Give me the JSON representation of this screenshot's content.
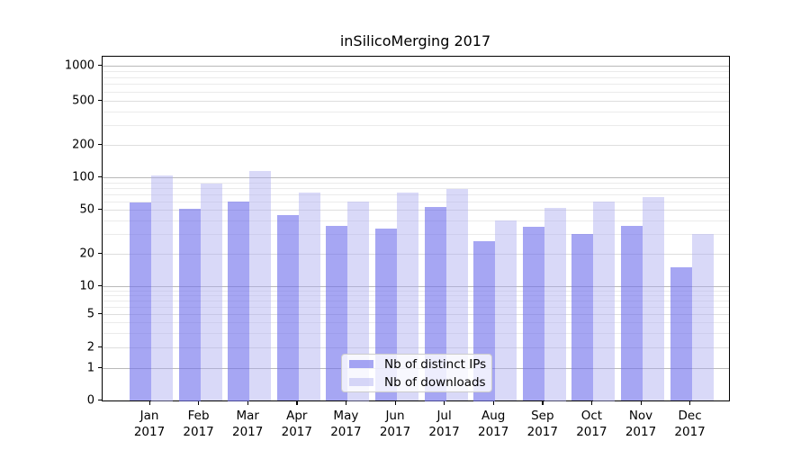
{
  "title": "inSilicoMerging 2017",
  "chart_data": {
    "type": "bar",
    "title": "inSilicoMerging 2017",
    "categories": [
      "Jan",
      "Feb",
      "Mar",
      "Apr",
      "May",
      "Jun",
      "Jul",
      "Aug",
      "Sep",
      "Oct",
      "Nov",
      "Dec"
    ],
    "category_year": "2017",
    "series": [
      {
        "name": "Nb of distinct IPs",
        "color_key": "ips",
        "values": [
          58,
          51,
          60,
          45,
          36,
          34,
          53,
          26,
          35,
          30,
          36,
          15
        ]
      },
      {
        "name": "Nb of downloads",
        "color_key": "downloads",
        "values": [
          104,
          88,
          114,
          72,
          60,
          72,
          78,
          40,
          52,
          60,
          65,
          30
        ]
      }
    ],
    "yscale": "symlog",
    "ylim": [
      0,
      1000
    ],
    "yticks": [
      0,
      1,
      2,
      5,
      10,
      20,
      50,
      100,
      200,
      500,
      1000
    ],
    "minor_yticks": [
      3,
      4,
      6,
      7,
      8,
      9,
      30,
      40,
      60,
      70,
      80,
      90,
      300,
      400,
      600,
      700,
      800,
      900
    ],
    "grid": true,
    "legend_position": "lower center"
  },
  "colors": {
    "ips": "rgba(111,111,236,0.62)",
    "downloads": "rgba(170,170,240,0.45)",
    "grid_decade": "#b9b9b9",
    "grid_labeled": "#dedede",
    "grid_minor": "#ebebeb",
    "spine": "#000000",
    "text": "#000000"
  }
}
